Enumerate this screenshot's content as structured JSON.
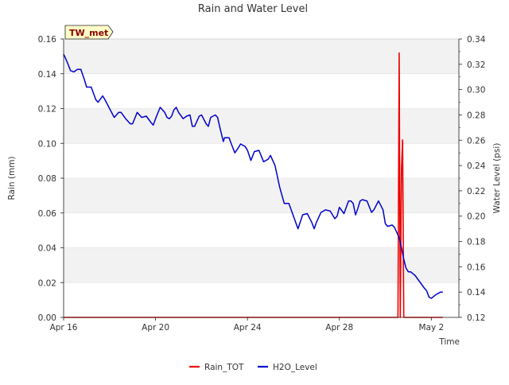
{
  "chart_data": {
    "type": "line",
    "title": "Rain and Water Level",
    "site_label": "TW_met",
    "xlabel": "Time",
    "ylabel_left": "Rain (mm)",
    "ylabel_right": "Water Level (psi)",
    "x_unit": "days since Apr 16",
    "xlim": [
      0,
      17.2
    ],
    "ylim_left": [
      0.0,
      0.16
    ],
    "ylim_right": [
      0.12,
      0.34
    ],
    "x_ticks": [
      {
        "value": 0,
        "label": "Apr 16"
      },
      {
        "value": 4,
        "label": "Apr 20"
      },
      {
        "value": 8,
        "label": "Apr 24"
      },
      {
        "value": 12,
        "label": "Apr 28"
      },
      {
        "value": 16,
        "label": "May 2"
      }
    ],
    "y_ticks_left": [
      {
        "value": 0.0,
        "label": "0.00"
      },
      {
        "value": 0.02,
        "label": "0.02"
      },
      {
        "value": 0.04,
        "label": "0.04"
      },
      {
        "value": 0.06,
        "label": "0.06"
      },
      {
        "value": 0.08,
        "label": "0.08"
      },
      {
        "value": 0.1,
        "label": "0.10"
      },
      {
        "value": 0.12,
        "label": "0.12"
      },
      {
        "value": 0.14,
        "label": "0.14"
      },
      {
        "value": 0.16,
        "label": "0.16"
      }
    ],
    "y_ticks_right": [
      {
        "value": 0.12,
        "label": "0.12"
      },
      {
        "value": 0.14,
        "label": "0.14"
      },
      {
        "value": 0.16,
        "label": "0.16"
      },
      {
        "value": 0.18,
        "label": "0.18"
      },
      {
        "value": 0.2,
        "label": "0.20"
      },
      {
        "value": 0.22,
        "label": "0.22"
      },
      {
        "value": 0.24,
        "label": "0.24"
      },
      {
        "value": 0.26,
        "label": "0.26"
      },
      {
        "value": 0.28,
        "label": "0.28"
      },
      {
        "value": 0.3,
        "label": "0.30"
      },
      {
        "value": 0.32,
        "label": "0.32"
      },
      {
        "value": 0.34,
        "label": "0.34"
      }
    ],
    "grid": true,
    "legend_position": "bottom-center",
    "series": [
      {
        "name": "Rain_TOT",
        "axis": "left",
        "color": "#ee0000",
        "x": [
          0.0,
          14.5,
          14.55,
          14.6,
          14.65,
          14.7,
          14.75,
          14.8,
          14.85,
          14.9,
          15.0,
          16.5
        ],
        "values": [
          0.0,
          0.0,
          0.0,
          0.152,
          0.0,
          0.085,
          0.102,
          0.0,
          0.0,
          0.0,
          0.0,
          0.0
        ]
      },
      {
        "name": "H2O_Level",
        "axis": "right",
        "color": "#0000cc",
        "x": [
          0.0,
          0.15,
          0.3,
          0.45,
          0.6,
          0.75,
          0.9,
          1.0,
          1.2,
          1.4,
          1.5,
          1.7,
          1.8,
          2.0,
          2.2,
          2.4,
          2.5,
          2.7,
          2.9,
          3.0,
          3.2,
          3.4,
          3.6,
          3.8,
          3.9,
          4.0,
          4.2,
          4.3,
          4.4,
          4.5,
          4.6,
          4.7,
          4.8,
          4.9,
          5.0,
          5.2,
          5.35,
          5.5,
          5.6,
          5.7,
          5.9,
          6.0,
          6.2,
          6.3,
          6.4,
          6.6,
          6.7,
          6.8,
          6.95,
          7.0,
          7.2,
          7.3,
          7.45,
          7.6,
          7.7,
          7.9,
          8.0,
          8.15,
          8.3,
          8.5,
          8.7,
          8.9,
          9.0,
          9.2,
          9.4,
          9.6,
          9.8,
          10.0,
          10.2,
          10.4,
          10.6,
          10.8,
          10.9,
          11.0,
          11.2,
          11.4,
          11.6,
          11.8,
          11.9,
          12.0,
          12.2,
          12.4,
          12.5,
          12.6,
          12.7,
          12.8,
          12.9,
          13.0,
          13.2,
          13.4,
          13.5,
          13.7,
          13.9,
          14.0,
          14.1,
          14.3,
          14.4,
          14.6,
          14.7,
          14.8,
          14.9,
          15.0,
          15.1,
          15.3,
          15.5,
          15.7,
          15.8,
          15.9,
          16.0,
          16.2,
          16.4,
          16.5
        ],
        "values": [
          0.328,
          0.322,
          0.315,
          0.314,
          0.316,
          0.316,
          0.308,
          0.302,
          0.302,
          0.292,
          0.29,
          0.295,
          0.292,
          0.285,
          0.278,
          0.282,
          0.282,
          0.277,
          0.273,
          0.273,
          0.282,
          0.278,
          0.279,
          0.274,
          0.272,
          0.277,
          0.286,
          0.284,
          0.282,
          0.278,
          0.277,
          0.279,
          0.284,
          0.286,
          0.282,
          0.277,
          0.279,
          0.28,
          0.271,
          0.271,
          0.279,
          0.28,
          0.273,
          0.271,
          0.278,
          0.28,
          0.278,
          0.27,
          0.259,
          0.262,
          0.262,
          0.257,
          0.25,
          0.254,
          0.257,
          0.255,
          0.252,
          0.244,
          0.251,
          0.252,
          0.243,
          0.245,
          0.248,
          0.24,
          0.223,
          0.21,
          0.21,
          0.2,
          0.19,
          0.201,
          0.202,
          0.195,
          0.19,
          0.195,
          0.203,
          0.205,
          0.204,
          0.198,
          0.2,
          0.207,
          0.202,
          0.212,
          0.212,
          0.21,
          0.201,
          0.206,
          0.212,
          0.213,
          0.212,
          0.203,
          0.205,
          0.212,
          0.205,
          0.194,
          0.192,
          0.193,
          0.191,
          0.183,
          0.175,
          0.166,
          0.159,
          0.156,
          0.156,
          0.153,
          0.148,
          0.143,
          0.141,
          0.136,
          0.135,
          0.138,
          0.14,
          0.14
        ]
      }
    ]
  }
}
